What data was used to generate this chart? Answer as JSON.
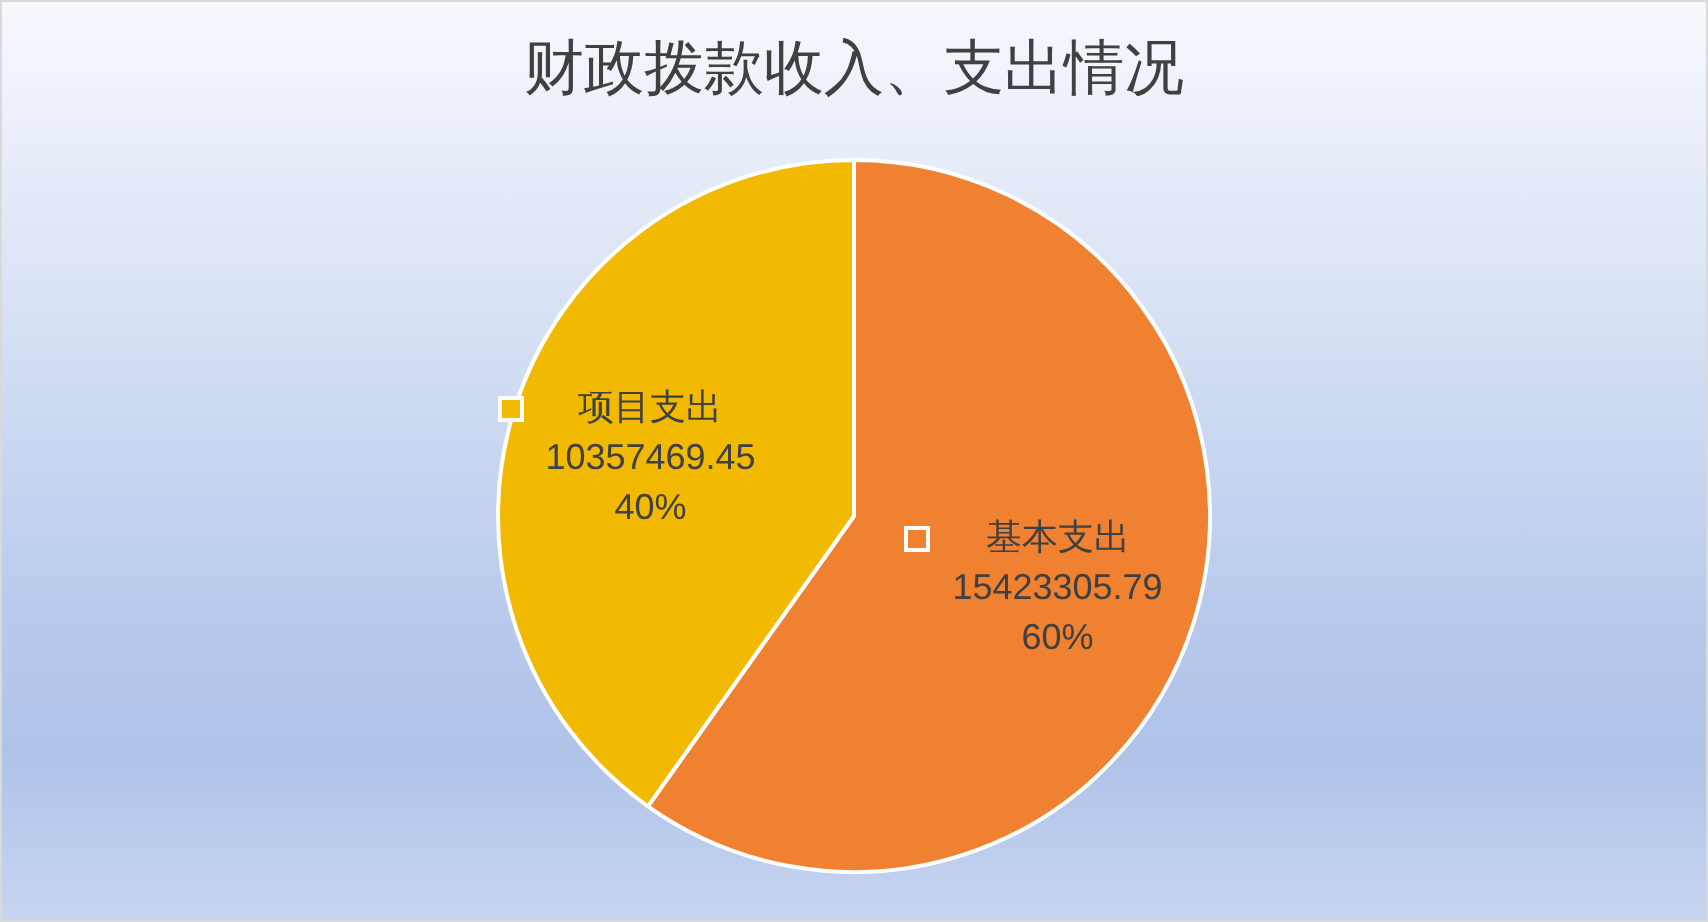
{
  "chart_data": {
    "type": "pie",
    "title": "财政拨款收入、支出情况",
    "categories": [
      "基本支出",
      "项目支出"
    ],
    "values": [
      15423305.79,
      10357469.45
    ],
    "colors": [
      "#ef8131",
      "#f1b900"
    ],
    "value_labels": [
      "15423305.79\n60%",
      "10357469.45\n40%"
    ],
    "legend": "center"
  }
}
